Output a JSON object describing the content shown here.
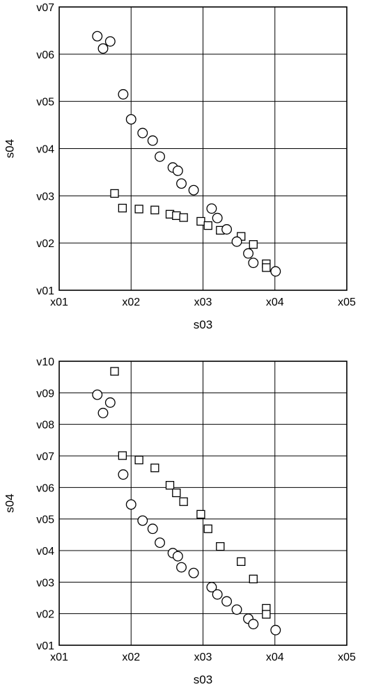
{
  "chart_data": [
    {
      "type": "scatter",
      "xlabel": "s03",
      "ylabel": "s04",
      "x_ticks": [
        "x01",
        "x02",
        "x03",
        "x04",
        "x05"
      ],
      "y_ticks": [
        "v01",
        "v02",
        "v03",
        "v04",
        "v05",
        "v06",
        "v07"
      ],
      "xlim": [
        1,
        5
      ],
      "ylim": [
        1,
        7
      ],
      "grid": true,
      "series": [
        {
          "marker": "circle",
          "points": [
            {
              "x": 1.53,
              "y": 6.38
            },
            {
              "x": 1.61,
              "y": 6.12
            },
            {
              "x": 1.71,
              "y": 6.27
            },
            {
              "x": 1.89,
              "y": 5.15
            },
            {
              "x": 2.0,
              "y": 4.62
            },
            {
              "x": 2.16,
              "y": 4.33
            },
            {
              "x": 2.3,
              "y": 4.17
            },
            {
              "x": 2.4,
              "y": 3.83
            },
            {
              "x": 2.58,
              "y": 3.6
            },
            {
              "x": 2.65,
              "y": 3.53
            },
            {
              "x": 2.7,
              "y": 3.26
            },
            {
              "x": 2.87,
              "y": 3.12
            },
            {
              "x": 3.12,
              "y": 2.73
            },
            {
              "x": 3.2,
              "y": 2.53
            },
            {
              "x": 3.33,
              "y": 2.29
            },
            {
              "x": 3.47,
              "y": 2.03
            },
            {
              "x": 3.63,
              "y": 1.78
            },
            {
              "x": 3.7,
              "y": 1.58
            },
            {
              "x": 4.01,
              "y": 1.4
            }
          ]
        },
        {
          "marker": "square",
          "points": [
            {
              "x": 1.77,
              "y": 3.05
            },
            {
              "x": 1.88,
              "y": 2.74
            },
            {
              "x": 2.11,
              "y": 2.72
            },
            {
              "x": 2.33,
              "y": 2.7
            },
            {
              "x": 2.54,
              "y": 2.61
            },
            {
              "x": 2.63,
              "y": 2.58
            },
            {
              "x": 2.73,
              "y": 2.54
            },
            {
              "x": 2.97,
              "y": 2.46
            },
            {
              "x": 3.07,
              "y": 2.37
            },
            {
              "x": 3.24,
              "y": 2.27
            },
            {
              "x": 3.53,
              "y": 2.14
            },
            {
              "x": 3.7,
              "y": 1.97
            },
            {
              "x": 3.88,
              "y": 1.56
            },
            {
              "x": 3.88,
              "y": 1.48
            }
          ]
        }
      ]
    },
    {
      "type": "scatter",
      "xlabel": "s03",
      "ylabel": "s04",
      "x_ticks": [
        "x01",
        "x02",
        "x03",
        "x04",
        "x05"
      ],
      "y_ticks": [
        "v01",
        "v02",
        "v03",
        "v04",
        "v05",
        "v06",
        "v07",
        "v08",
        "v09",
        "v10"
      ],
      "xlim": [
        1,
        5
      ],
      "ylim": [
        1,
        10
      ],
      "grid": true,
      "series": [
        {
          "marker": "circle",
          "points": [
            {
              "x": 1.53,
              "y": 8.94
            },
            {
              "x": 1.61,
              "y": 8.36
            },
            {
              "x": 1.71,
              "y": 8.69
            },
            {
              "x": 1.89,
              "y": 6.41
            },
            {
              "x": 2.0,
              "y": 5.46
            },
            {
              "x": 2.16,
              "y": 4.95
            },
            {
              "x": 2.3,
              "y": 4.69
            },
            {
              "x": 2.4,
              "y": 4.25
            },
            {
              "x": 2.58,
              "y": 3.92
            },
            {
              "x": 2.65,
              "y": 3.82
            },
            {
              "x": 2.7,
              "y": 3.47
            },
            {
              "x": 2.87,
              "y": 3.29
            },
            {
              "x": 3.12,
              "y": 2.84
            },
            {
              "x": 3.2,
              "y": 2.61
            },
            {
              "x": 3.33,
              "y": 2.39
            },
            {
              "x": 3.47,
              "y": 2.13
            },
            {
              "x": 3.63,
              "y": 1.84
            },
            {
              "x": 3.7,
              "y": 1.67
            },
            {
              "x": 4.01,
              "y": 1.48
            }
          ]
        },
        {
          "marker": "square",
          "points": [
            {
              "x": 1.77,
              "y": 9.68
            },
            {
              "x": 1.88,
              "y": 7.01
            },
            {
              "x": 2.11,
              "y": 6.87
            },
            {
              "x": 2.33,
              "y": 6.62
            },
            {
              "x": 2.54,
              "y": 6.07
            },
            {
              "x": 2.63,
              "y": 5.83
            },
            {
              "x": 2.73,
              "y": 5.55
            },
            {
              "x": 2.97,
              "y": 5.15
            },
            {
              "x": 3.07,
              "y": 4.69
            },
            {
              "x": 3.24,
              "y": 4.13
            },
            {
              "x": 3.53,
              "y": 3.65
            },
            {
              "x": 3.7,
              "y": 3.1
            },
            {
              "x": 3.88,
              "y": 2.17
            },
            {
              "x": 3.88,
              "y": 1.98
            }
          ]
        }
      ]
    }
  ]
}
